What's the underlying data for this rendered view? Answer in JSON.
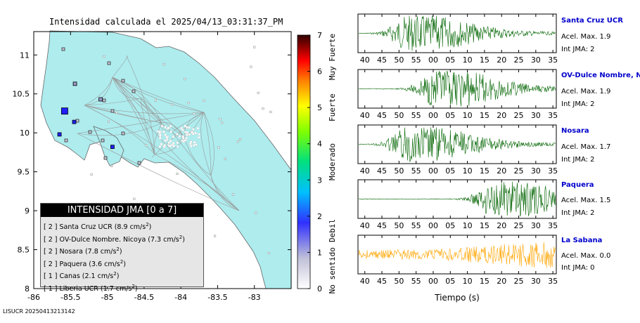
{
  "map": {
    "title": "Intensidad calculada el 2025/04/13_03:31:37_PM",
    "xticks": [
      "-86",
      "-85.5",
      "-85",
      "-84.5",
      "-84",
      "-83.5",
      "-83"
    ],
    "yticks": [
      "11",
      "10.5",
      "10",
      "9.5",
      "9",
      "8.5",
      "8"
    ],
    "colorbar": {
      "ticks": [
        "0",
        "1",
        "2",
        "3",
        "4",
        "5",
        "6",
        "7"
      ],
      "labels": [
        "No sentido",
        "Debil",
        "Moderado",
        "Fuerte",
        "Muy Fuerte"
      ]
    },
    "legend": {
      "title": "INTENSIDAD JMA [0 a 7]",
      "entries": [
        {
          "level": "[ 2 ]",
          "station": "Santa Cruz UCR",
          "value": "(8.9 cm/s",
          "unit": "2",
          "close": ")"
        },
        {
          "level": "[ 2 ]",
          "station": "OV-Dulce Nombre. Nicoya",
          "value": "(7.3 cm/s",
          "unit": "2",
          "close": ")"
        },
        {
          "level": "[ 2 ]",
          "station": "Nosara",
          "value": "(7.8 cm/s",
          "unit": "2",
          "close": ")"
        },
        {
          "level": "[ 2 ]",
          "station": "Paquera",
          "value": "(3.6 cm/s",
          "unit": "2",
          "close": ")"
        },
        {
          "level": "[ 1 ]",
          "station": "Canas",
          "value": "(2.1 cm/s",
          "unit": "2",
          "close": ")"
        },
        {
          "level": "[ 1 ]",
          "station": "Liberia UCR",
          "value": "(1.7 cm/s",
          "unit": "2",
          "close": ")"
        }
      ]
    },
    "footer": "LISUCR 20250413213142"
  },
  "waveforms": {
    "xticks": [
      "40",
      "45",
      "50",
      "55",
      "00",
      "05",
      "10",
      "15",
      "20",
      "25",
      "30",
      "35"
    ],
    "xlabel": "Tiempo (s)",
    "stations": [
      {
        "name": "Santa Cruz UCR",
        "acel": "Acel. Max. 1.9",
        "jma": "Int JMA: 2",
        "color": "#006400"
      },
      {
        "name": "OV-Dulce Nombre, Nico",
        "acel": "Acel. Max. 1.9",
        "jma": "Int JMA: 2",
        "color": "#006400"
      },
      {
        "name": "Nosara",
        "acel": "Acel. Max. 1.7",
        "jma": "Int JMA: 2",
        "color": "#006400"
      },
      {
        "name": "Paquera",
        "acel": "Acel. Max. 1.5",
        "jma": "Int JMA: 2",
        "color": "#006400"
      },
      {
        "name": "La Sabana",
        "acel": "Acel. Max. 0.0",
        "jma": "Int JMA: 0",
        "color": "#ffa500"
      }
    ]
  },
  "chart_data": [
    {
      "type": "scatter",
      "title": "Intensidad calculada el 2025/04/13_03:31:37_PM",
      "xlim": [
        -86,
        -82.5
      ],
      "ylim": [
        8,
        11.3
      ],
      "colorscale": {
        "min": 0,
        "max": 7
      },
      "series": [
        {
          "name": "Santa Cruz UCR",
          "x": [
            -85.58
          ],
          "y": [
            10.28
          ],
          "value": 2
        },
        {
          "name": "OV-Dulce Nombre. Nicoya",
          "x": [
            -85.45
          ],
          "y": [
            10.14
          ],
          "value": 2
        },
        {
          "name": "Nosara",
          "x": [
            -85.65
          ],
          "y": [
            9.98
          ],
          "value": 2
        },
        {
          "name": "Paquera",
          "x": [
            -84.93
          ],
          "y": [
            9.82
          ],
          "value": 2
        },
        {
          "name": "Canas",
          "x": [
            -85.09
          ],
          "y": [
            10.43
          ],
          "value": 1
        },
        {
          "name": "Liberia UCR",
          "x": [
            -85.44
          ],
          "y": [
            10.63
          ],
          "value": 1
        }
      ]
    },
    {
      "type": "line",
      "xlabel": "Tiempo (s)",
      "xlim": [
        38,
        96
      ],
      "series": [
        {
          "name": "Santa Cruz UCR",
          "peak_time": 53,
          "max_accel": 1.9
        },
        {
          "name": "OV-Dulce Nombre, Nico",
          "peak_time": 61,
          "max_accel": 1.9
        },
        {
          "name": "Nosara",
          "peak_time": 53,
          "max_accel": 1.7
        },
        {
          "name": "Paquera",
          "peak_time": 78,
          "max_accel": 1.5
        },
        {
          "name": "La Sabana",
          "peak_time": 80,
          "max_accel": 0.0
        }
      ]
    }
  ]
}
